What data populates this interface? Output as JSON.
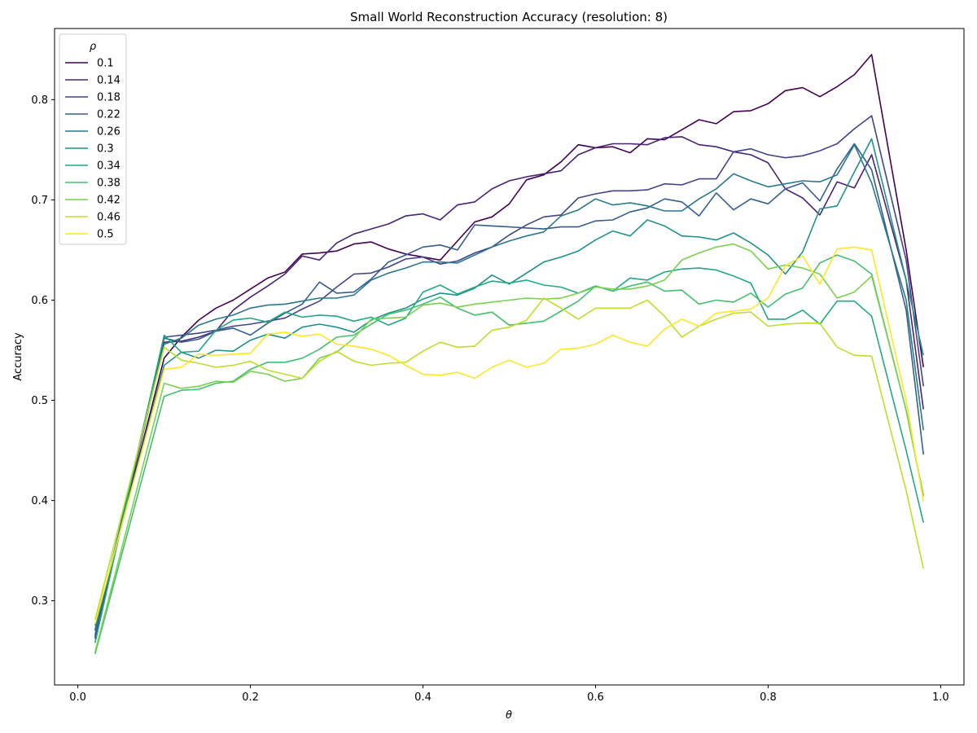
{
  "chart_data": {
    "type": "line",
    "title": "Small World Reconstruction Accuracy (resolution: 8)",
    "xlabel": "θ",
    "ylabel": "Accuracy",
    "xlim": [
      -0.027,
      1.027
    ],
    "ylim": [
      0.216,
      0.871
    ],
    "xticks": [
      0.0,
      0.2,
      0.4,
      0.6,
      0.8,
      1.0
    ],
    "xtick_labels": [
      "0.0",
      "0.2",
      "0.4",
      "0.6",
      "0.8",
      "1.0"
    ],
    "yticks": [
      0.3,
      0.4,
      0.5,
      0.6,
      0.7,
      0.8
    ],
    "ytick_labels": [
      "0.3",
      "0.4",
      "0.5",
      "0.6",
      "0.7",
      "0.8"
    ],
    "grid": false,
    "legend": {
      "title": "ρ",
      "placement": "top-left"
    },
    "x": [
      0.02,
      0.1,
      0.12,
      0.14,
      0.16,
      0.18,
      0.2,
      0.22,
      0.24,
      0.26,
      0.28,
      0.3,
      0.32,
      0.34,
      0.36,
      0.38,
      0.4,
      0.42,
      0.44,
      0.46,
      0.48,
      0.5,
      0.52,
      0.54,
      0.56,
      0.58,
      0.6,
      0.62,
      0.64,
      0.66,
      0.68,
      0.7,
      0.72,
      0.74,
      0.76,
      0.78,
      0.8,
      0.82,
      0.84,
      0.86,
      0.88,
      0.9,
      0.92,
      0.96,
      0.98
    ],
    "series": [
      {
        "name": "0.1",
        "color": "#440154",
        "values": [
          0.271,
          0.542,
          0.563,
          0.58,
          0.592,
          0.6,
          0.611,
          0.622,
          0.628,
          0.646,
          0.647,
          0.649,
          0.656,
          0.658,
          0.651,
          0.646,
          0.643,
          0.64,
          0.659,
          0.678,
          0.683,
          0.696,
          0.72,
          0.725,
          0.738,
          0.755,
          0.752,
          0.753,
          0.747,
          0.761,
          0.76,
          0.77,
          0.78,
          0.776,
          0.788,
          0.789,
          0.796,
          0.809,
          0.812,
          0.803,
          0.813,
          0.825,
          0.845,
          0.65,
          0.533
        ]
      },
      {
        "name": "0.14",
        "color": "#482475",
        "values": [
          0.262,
          0.558,
          0.559,
          0.563,
          0.569,
          0.59,
          0.603,
          0.614,
          0.626,
          0.644,
          0.64,
          0.657,
          0.666,
          0.671,
          0.676,
          0.684,
          0.686,
          0.68,
          0.695,
          0.698,
          0.711,
          0.719,
          0.723,
          0.726,
          0.729,
          0.745,
          0.752,
          0.756,
          0.756,
          0.755,
          0.762,
          0.763,
          0.755,
          0.753,
          0.748,
          0.745,
          0.737,
          0.711,
          0.702,
          0.685,
          0.718,
          0.712,
          0.745,
          0.62,
          0.491
        ]
      },
      {
        "name": "0.18",
        "color": "#414487",
        "values": [
          0.264,
          0.563,
          0.565,
          0.567,
          0.57,
          0.574,
          0.576,
          0.579,
          0.582,
          0.591,
          0.599,
          0.613,
          0.626,
          0.627,
          0.633,
          0.641,
          0.643,
          0.636,
          0.639,
          0.647,
          0.653,
          0.665,
          0.675,
          0.683,
          0.685,
          0.702,
          0.706,
          0.709,
          0.709,
          0.71,
          0.716,
          0.715,
          0.721,
          0.721,
          0.748,
          0.751,
          0.745,
          0.742,
          0.744,
          0.749,
          0.756,
          0.771,
          0.784,
          0.64,
          0.514
        ]
      },
      {
        "name": "0.22",
        "color": "#355f8d",
        "values": [
          0.266,
          0.562,
          0.558,
          0.561,
          0.569,
          0.572,
          0.565,
          0.577,
          0.587,
          0.596,
          0.618,
          0.607,
          0.608,
          0.621,
          0.638,
          0.645,
          0.653,
          0.655,
          0.65,
          0.675,
          0.674,
          0.673,
          0.672,
          0.671,
          0.673,
          0.673,
          0.679,
          0.68,
          0.688,
          0.692,
          0.701,
          0.698,
          0.684,
          0.707,
          0.69,
          0.701,
          0.696,
          0.711,
          0.717,
          0.699,
          0.731,
          0.756,
          0.73,
          0.59,
          0.446
        ]
      },
      {
        "name": "0.26",
        "color": "#2a788e",
        "values": [
          0.27,
          0.556,
          0.562,
          0.575,
          0.581,
          0.585,
          0.592,
          0.595,
          0.596,
          0.599,
          0.602,
          0.602,
          0.605,
          0.62,
          0.627,
          0.632,
          0.638,
          0.638,
          0.637,
          0.645,
          0.653,
          0.659,
          0.664,
          0.668,
          0.684,
          0.69,
          0.701,
          0.695,
          0.697,
          0.694,
          0.689,
          0.689,
          0.701,
          0.711,
          0.726,
          0.719,
          0.713,
          0.716,
          0.719,
          0.718,
          0.725,
          0.755,
          0.717,
          0.6,
          0.47
        ]
      },
      {
        "name": "0.3",
        "color": "#21918c",
        "values": [
          0.275,
          0.535,
          0.548,
          0.542,
          0.55,
          0.549,
          0.56,
          0.566,
          0.562,
          0.573,
          0.576,
          0.573,
          0.568,
          0.58,
          0.587,
          0.592,
          0.601,
          0.607,
          0.605,
          0.612,
          0.625,
          0.616,
          0.627,
          0.638,
          0.643,
          0.649,
          0.66,
          0.669,
          0.664,
          0.68,
          0.674,
          0.664,
          0.663,
          0.66,
          0.667,
          0.657,
          0.645,
          0.626,
          0.648,
          0.691,
          0.694,
          0.728,
          0.761,
          0.62,
          0.545
        ]
      },
      {
        "name": "0.34",
        "color": "#22a884",
        "values": [
          0.258,
          0.565,
          0.548,
          0.549,
          0.57,
          0.58,
          0.582,
          0.578,
          0.588,
          0.583,
          0.585,
          0.584,
          0.579,
          0.583,
          0.575,
          0.582,
          0.608,
          0.615,
          0.606,
          0.613,
          0.619,
          0.617,
          0.62,
          0.615,
          0.613,
          0.607,
          0.614,
          0.609,
          0.622,
          0.62,
          0.628,
          0.631,
          0.632,
          0.63,
          0.624,
          0.617,
          0.581,
          0.581,
          0.59,
          0.576,
          0.599,
          0.599,
          0.584,
          0.45,
          0.378
        ]
      },
      {
        "name": "0.38",
        "color": "#44bf70",
        "values": [
          0.247,
          0.504,
          0.51,
          0.511,
          0.517,
          0.519,
          0.531,
          0.538,
          0.538,
          0.542,
          0.551,
          0.563,
          0.565,
          0.576,
          0.586,
          0.59,
          0.596,
          0.603,
          0.592,
          0.585,
          0.588,
          0.575,
          0.577,
          0.579,
          0.589,
          0.599,
          0.614,
          0.609,
          0.614,
          0.618,
          0.609,
          0.61,
          0.596,
          0.6,
          0.598,
          0.607,
          0.593,
          0.606,
          0.612,
          0.637,
          0.645,
          0.639,
          0.626,
          0.49,
          0.405
        ]
      },
      {
        "name": "0.42",
        "color": "#7ad151",
        "values": [
          0.249,
          0.517,
          0.512,
          0.514,
          0.519,
          0.518,
          0.529,
          0.526,
          0.519,
          0.522,
          0.542,
          0.548,
          0.562,
          0.581,
          0.582,
          0.583,
          0.595,
          0.597,
          0.593,
          0.596,
          0.598,
          0.6,
          0.602,
          0.601,
          0.602,
          0.607,
          0.613,
          0.611,
          0.611,
          0.614,
          0.62,
          0.64,
          0.647,
          0.653,
          0.656,
          0.649,
          0.631,
          0.635,
          0.632,
          0.626,
          0.602,
          0.608,
          0.624,
          0.49,
          0.404
        ]
      },
      {
        "name": "0.46",
        "color": "#bddf26",
        "values": [
          0.281,
          0.553,
          0.54,
          0.537,
          0.533,
          0.535,
          0.539,
          0.53,
          0.526,
          0.522,
          0.539,
          0.549,
          0.539,
          0.535,
          0.537,
          0.538,
          0.549,
          0.558,
          0.553,
          0.554,
          0.57,
          0.573,
          0.58,
          0.602,
          0.592,
          0.581,
          0.592,
          0.592,
          0.592,
          0.6,
          0.584,
          0.563,
          0.574,
          0.581,
          0.587,
          0.588,
          0.574,
          0.576,
          0.577,
          0.577,
          0.553,
          0.545,
          0.544,
          0.41,
          0.332
        ]
      },
      {
        "name": "0.5",
        "color": "#fde725",
        "values": [
          0.277,
          0.531,
          0.533,
          0.546,
          0.545,
          0.546,
          0.547,
          0.566,
          0.568,
          0.564,
          0.566,
          0.556,
          0.554,
          0.551,
          0.545,
          0.535,
          0.526,
          0.525,
          0.528,
          0.522,
          0.533,
          0.54,
          0.533,
          0.537,
          0.551,
          0.552,
          0.556,
          0.565,
          0.558,
          0.554,
          0.571,
          0.581,
          0.574,
          0.587,
          0.589,
          0.591,
          0.602,
          0.634,
          0.644,
          0.616,
          0.651,
          0.653,
          0.65,
          0.5,
          0.399
        ]
      }
    ]
  }
}
